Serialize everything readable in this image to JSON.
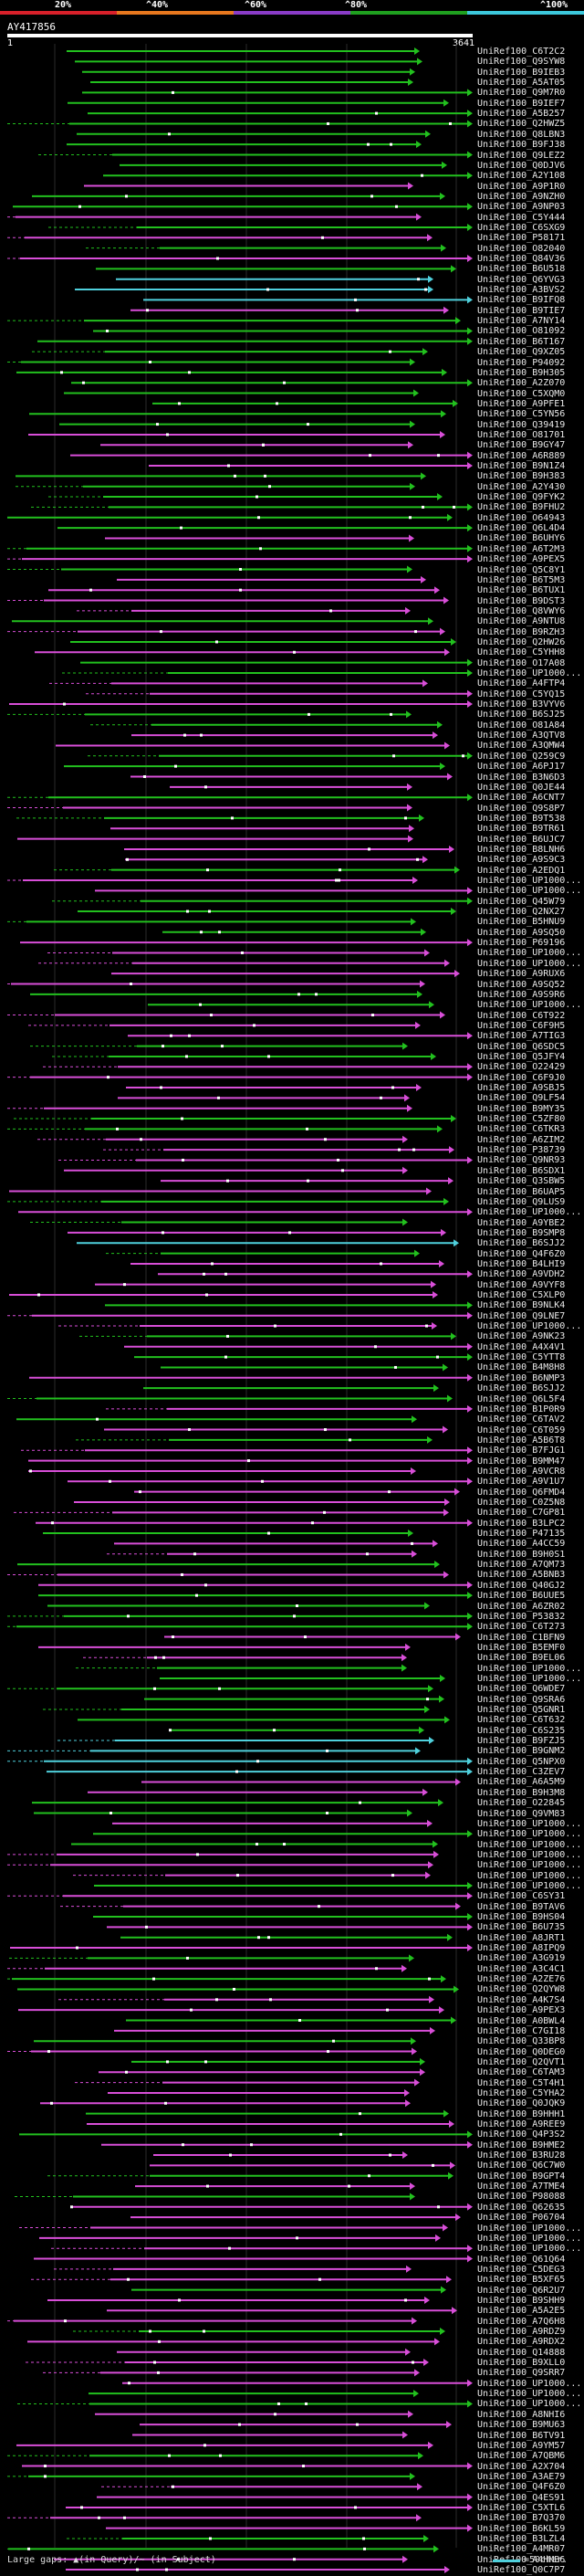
{
  "scale": {
    "labels": [
      "20%",
      "^40%",
      "^60%",
      "^80%",
      "^100%"
    ],
    "colors": [
      "#d8202a",
      "#e8781e",
      "#8a3cc8",
      "#1fa01f",
      "#3cc8dc"
    ]
  },
  "query": {
    "name": "AY417856",
    "start": "1",
    "end": "3641"
  },
  "colors": {
    "green": "#22c01e",
    "magenta": "#d84ed8",
    "cyan": "#4fd0dc",
    "white": "#ffffff"
  },
  "hits": [
    "UniRef100_C6T2C2",
    "UniRef100_Q9SYW8",
    "UniRef100_B9IEB3",
    "UniRef100_A5AT05",
    "UniRef100_Q9M7R0",
    "UniRef100_B9IEF7",
    "UniRef100_A5B257",
    "UniRef100_Q2HWZ5",
    "UniRef100_Q8LBN3",
    "UniRef100_B9FJ38",
    "UniRef100_Q9LEZ2",
    "UniRef100_Q0DJV6",
    "UniRef100_A2Y108",
    "UniRef100_A9P1R0",
    "UniRef100_A9NZH0",
    "UniRef100_A9NP03",
    "UniRef100_C5Y444",
    "UniRef100_C6SXG9",
    "UniRef100_P58171",
    "UniRef100_O82040",
    "UniRef100_Q84V36",
    "UniRef100_B6U518",
    "UniRef100_Q6YVG3",
    "UniRef100_A3BVS2",
    "UniRef100_B9IFQ8",
    "UniRef100_B9TIE7",
    "UniRef100_A7NY14",
    "UniRef100_O81092",
    "UniRef100_B6T167",
    "UniRef100_Q9XZ05",
    "UniRef100_P94092",
    "UniRef100_B9H305",
    "UniRef100_A2Z070",
    "UniRef100_C5XQM0",
    "UniRef100_A9PFE1",
    "UniRef100_C5YN56",
    "UniRef100_Q39419",
    "UniRef100_O81701",
    "UniRef100_B9GY47",
    "UniRef100_A6R889",
    "UniRef100_B9N1Z4",
    "UniRef100_B9H383",
    "UniRef100_A2Y430",
    "UniRef100_Q9FYK2",
    "UniRef100_B9FHU2",
    "UniRef100_O64943",
    "UniRef100_Q6L4D4",
    "UniRef100_B6UHY6",
    "UniRef100_A6T2M3",
    "UniRef100_A9PEX5",
    "UniRef100_Q5C8Y1",
    "UniRef100_B6T5M3",
    "UniRef100_B6TUX1",
    "UniRef100_B9DST3",
    "UniRef100_Q8VWY6",
    "UniRef100_A9NTU8",
    "UniRef100_B9RZH3",
    "UniRef100_Q2HW26",
    "UniRef100_C5YHH8",
    "UniRef100_O17A08",
    "UniRef100_UP1000...",
    "UniRef100_A4FTP4",
    "UniRef100_C5YQ15",
    "UniRef100_B3VYV6",
    "UniRef100_B6SJ25",
    "UniRef100_O81A84",
    "UniRef100_A3QTV8",
    "UniRef100_A3QMW4",
    "UniRef100_Q259C9",
    "UniRef100_A6PJ17",
    "UniRef100_B3N6D3",
    "UniRef100_Q0JE44",
    "UniRef100_A6CNT7",
    "UniRef100_Q9S8P7",
    "UniRef100_B9T538",
    "UniRef100_B9TR61",
    "UniRef100_B6UJC7",
    "UniRef100_B8LNH6",
    "UniRef100_A9S9C3",
    "UniRef100_A2EDQ1",
    "UniRef100_UP1000...",
    "UniRef100_UP1000...",
    "UniRef100_Q45W79",
    "UniRef100_Q2NX27",
    "UniRef100_B5HNU9",
    "UniRef100_A9SQ50",
    "UniRef100_P69196",
    "UniRef100_UP1000...",
    "UniRef100_UP1000...",
    "UniRef100_A9RUX6",
    "UniRef100_A9SQ52",
    "UniRef100_A9S9R6",
    "UniRef100_UP1000...",
    "UniRef100_C6T922",
    "UniRef100_C6F9H5",
    "UniRef100_A7TIG3",
    "UniRef100_Q6SDC5",
    "UniRef100_Q5JFY4",
    "UniRef100_O22429",
    "UniRef100_C6F9J0",
    "UniRef100_A9SBJ5",
    "UniRef100_Q9LF54",
    "UniRef100_B9MY35",
    "UniRef100_C5ZF80",
    "UniRef100_C6TKR3",
    "UniRef100_A6ZIM2",
    "UniRef100_P38739",
    "UniRef100_Q9NR93",
    "UniRef100_B6SDX1",
    "UniRef100_Q3SBW5",
    "UniRef100_B6UAP5",
    "UniRef100_Q9LUS9",
    "UniRef100_UP1000...",
    "UniRef100_A9YBE2",
    "UniRef100_B9SMP8",
    "UniRef100_B6SJJ2",
    "UniRef100_Q4F6Z0",
    "UniRef100_B4LHI9",
    "UniRef100_A9VDH2",
    "UniRef100_A9VYF8",
    "UniRef100_C5XLP0",
    "UniRef100_B9NLK4",
    "UniRef100_Q9LNE7",
    "UniRef100_UP1000...",
    "UniRef100_A9NK23",
    "UniRef100_A4X4V1",
    "UniRef100_C5YTT8",
    "UniRef100_B4M8H8",
    "UniRef100_B6NMP3",
    "UniRef100_B6SJJ2",
    "UniRef100_Q6L5F4",
    "UniRef100_B1P0R9",
    "UniRef100_C6TAV2",
    "UniRef100_C6T059",
    "UniRef100_A5B6T8",
    "UniRef100_B7FJG1",
    "UniRef100_B9MM47",
    "UniRef100_A9VCR8",
    "UniRef100_A9V1U7",
    "UniRef100_Q6FMD4",
    "UniRef100_C0Z5N8",
    "UniRef100_C7GP81",
    "UniRef100_B3LPC2",
    "UniRef100_P47135",
    "UniRef100_A4CC59",
    "UniRef100_B9H0S1",
    "UniRef100_A7QM73",
    "UniRef100_A5BNB3",
    "UniRef100_Q40GJ2",
    "UniRef100_B6UUE5",
    "UniRef100_A6ZR02",
    "UniRef100_P53832",
    "UniRef100_C6T273",
    "UniRef100_C1BFN9",
    "UniRef100_B5EMF0",
    "UniRef100_B9EL06",
    "UniRef100_UP1000...",
    "UniRef100_UP1000...",
    "UniRef100_Q6WDE7",
    "UniRef100_Q9SRA6",
    "UniRef100_Q5GNR1",
    "UniRef100_C6T632",
    "UniRef100_C6S235",
    "UniRef100_B9FZJ5",
    "UniRef100_B9GNM2",
    "UniRef100_Q5NPX0",
    "UniRef100_C3ZEV7",
    "UniRef100_A6A5M9",
    "UniRef100_B9H3M8",
    "UniRef100_O22845",
    "UniRef100_Q9VM83",
    "UniRef100_UP1000...",
    "UniRef100_UP1000...",
    "UniRef100_UP1000...",
    "UniRef100_UP1000...",
    "UniRef100_UP1000...",
    "UniRef100_UP1000...",
    "UniRef100_UP1000...",
    "UniRef100_C6SY31",
    "UniRef100_B9TAV6",
    "UniRef100_B9HS04",
    "UniRef100_B6U735",
    "UniRef100_A8JRT1",
    "UniRef100_A8IPQ9",
    "UniRef100_A3G919",
    "UniRef100_A3C4C1",
    "UniRef100_A2ZE76",
    "UniRef100_Q2QYW8",
    "UniRef100_A4K7S4",
    "UniRef100_A9PEX3",
    "UniRef100_A0BWL4",
    "UniRef100_C7GI18",
    "UniRef100_Q33BP8",
    "UniRef100_Q0DEG0",
    "UniRef100_Q2QVT1",
    "UniRef100_C6TAM3",
    "UniRef100_C5T4H1",
    "UniRef100_C5YHA2",
    "UniRef100_Q0JQK9",
    "UniRef100_B9HHH1",
    "UniRef100_A9REE9",
    "UniRef100_Q4P3S2",
    "UniRef100_B9HME2",
    "UniRef100_B3RU28",
    "UniRef100_Q6C7W0",
    "UniRef100_B9GPT4",
    "UniRef100_A7TME4",
    "UniRef100_P98088",
    "UniRef100_Q62635",
    "UniRef100_P06704",
    "UniRef100_UP1000...",
    "UniRef100_UP1000...",
    "UniRef100_UP1000...",
    "UniRef100_Q61Q64",
    "UniRef100_C5DEG3",
    "UniRef100_B5XF65",
    "UniRef100_Q6R2U7",
    "UniRef100_B9SHH9",
    "UniRef100_A5A2E5",
    "UniRef100_A7Q6H8",
    "UniRef100_A9RDZ9",
    "UniRef100_A9RDX2",
    "UniRef100_Q14888",
    "UniRef100_B9XLL0",
    "UniRef100_Q9SRR7",
    "UniRef100_UP1000...",
    "UniRef100_UP1000...",
    "UniRef100_UP1000...",
    "UniRef100_A8NHI6",
    "UniRef100_B9MU63",
    "UniRef100_B6TV91",
    "UniRef100_A9YM57",
    "UniRef100_A7QBM6",
    "UniRef100_A2X704",
    "UniRef100_A3AE79",
    "UniRef100_Q4F6Z0",
    "UniRef100_Q4ES91",
    "UniRef100_C5XTL6",
    "UniRef100_B7Q370",
    "UniRef100_B6KL59",
    "UniRef100_B3LZL4",
    "UniRef100_A4MR07",
    "UniRef100_A4HMB6",
    "UniRef100_Q0C7P7"
  ],
  "legend": {
    "text": "Large gaps: ▲(in Query)/~ (in Subject)",
    "scale_text": "=50char."
  }
}
